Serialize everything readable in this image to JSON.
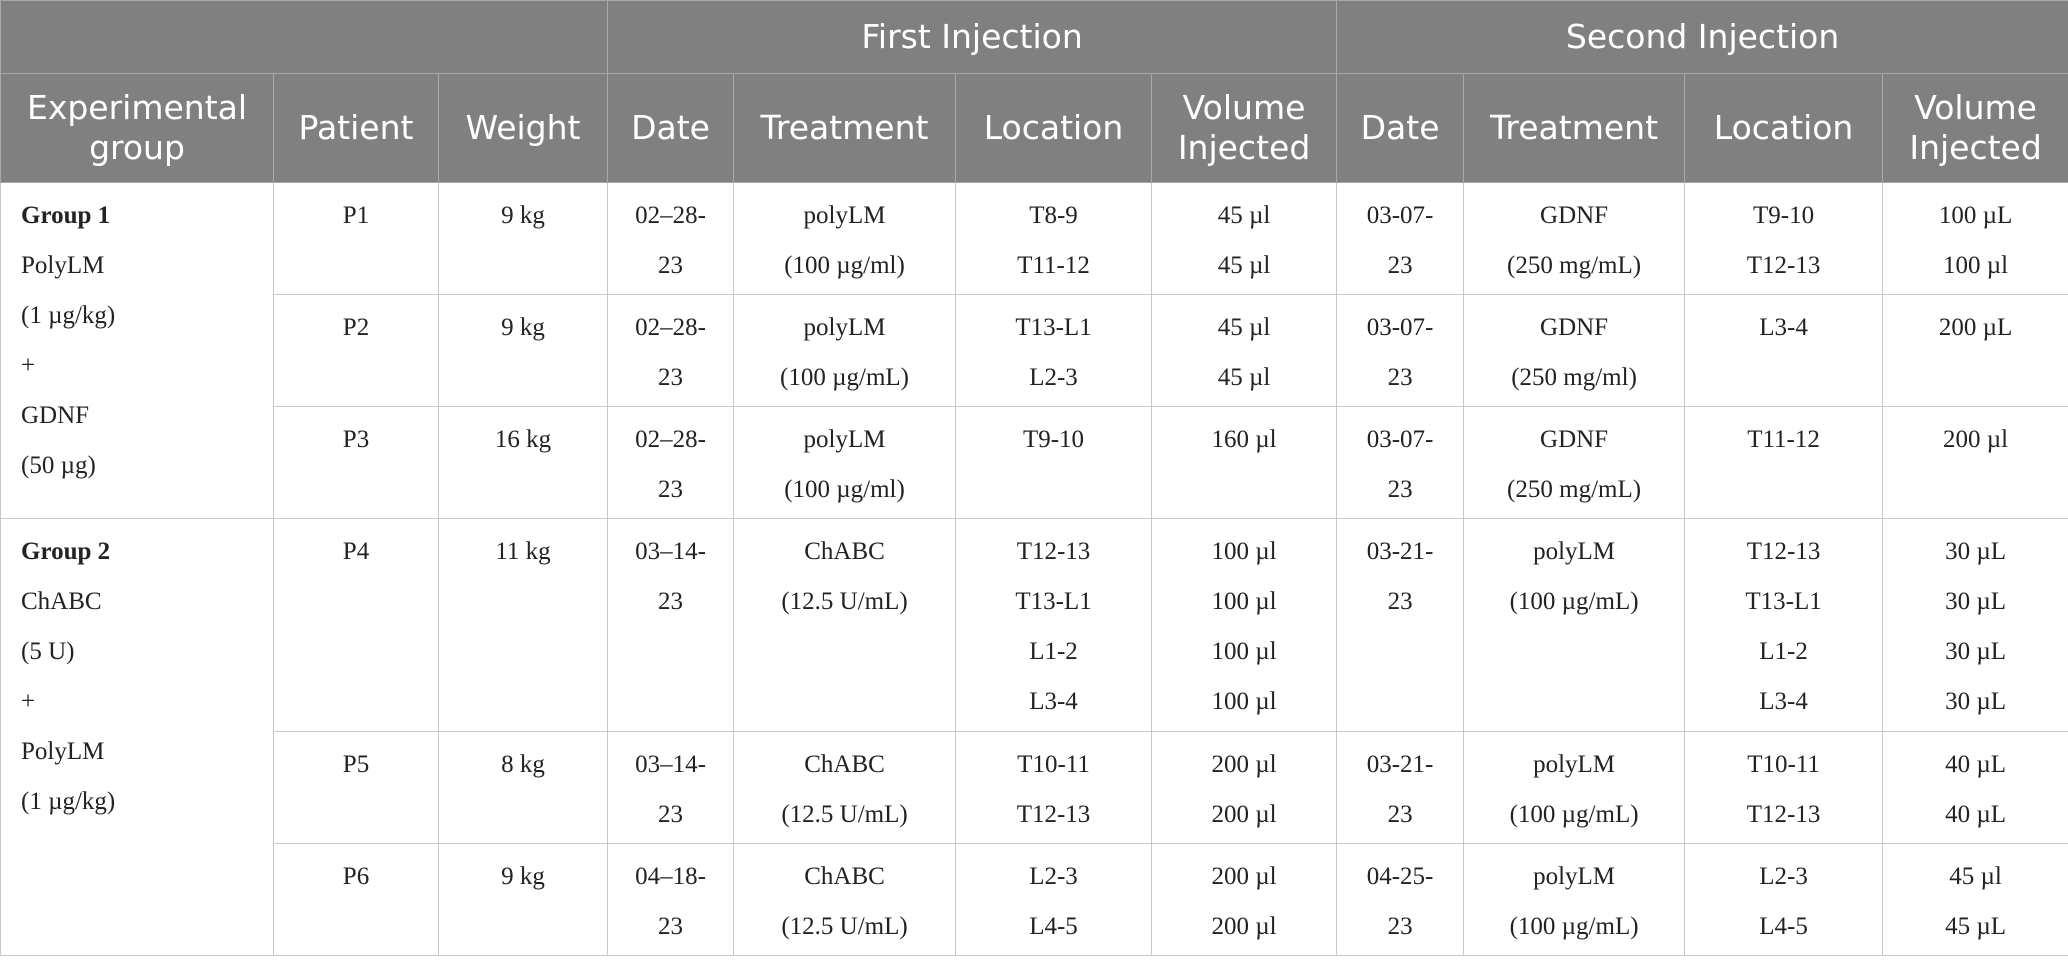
{
  "table": {
    "span_headers": [
      "First Injection",
      "Second Injection"
    ],
    "columns": [
      "Experimental group",
      "Patient",
      "Weight",
      "Date",
      "Treatment",
      "Location",
      "Volume Injected",
      "Date",
      "Treatment",
      "Location",
      "Volume Injected"
    ],
    "groups": [
      {
        "label": "Group 1",
        "description": [
          "PolyLM",
          "(1 µg/kg)",
          "+",
          "GDNF",
          "(50 µg)"
        ],
        "rows": [
          {
            "patient": "P1",
            "weight": "9 kg",
            "first": {
              "date": [
                "02–28-",
                "23"
              ],
              "treatment": [
                "polyLM",
                "(100 µg/ml)"
              ],
              "location": [
                "T8-9",
                "T11-12"
              ],
              "volume": [
                "45 µl",
                "45 µl"
              ]
            },
            "second": {
              "date": [
                "03-07-",
                "23"
              ],
              "treatment": [
                "GDNF",
                "(250 mg/mL)"
              ],
              "location": [
                "T9-10",
                "T12-13"
              ],
              "volume": [
                "100 µL",
                "100 µl"
              ]
            }
          },
          {
            "patient": "P2",
            "weight": "9 kg",
            "first": {
              "date": [
                "02–28-",
                "23"
              ],
              "treatment": [
                "polyLM",
                "(100 µg/mL)"
              ],
              "location": [
                "T13-L1",
                "L2-3"
              ],
              "volume": [
                "45 µl",
                "45 µl"
              ]
            },
            "second": {
              "date": [
                "03-07-",
                "23"
              ],
              "treatment": [
                "GDNF",
                "(250 mg/ml)"
              ],
              "location": [
                "L3-4"
              ],
              "volume": [
                "200 µL"
              ]
            }
          },
          {
            "patient": "P3",
            "weight": "16 kg",
            "first": {
              "date": [
                "02–28-",
                "23"
              ],
              "treatment": [
                "polyLM",
                "(100 µg/ml)"
              ],
              "location": [
                "T9-10"
              ],
              "volume": [
                "160 µl"
              ]
            },
            "second": {
              "date": [
                "03-07-",
                "23"
              ],
              "treatment": [
                "GDNF",
                "(250 mg/mL)"
              ],
              "location": [
                "T11-12"
              ],
              "volume": [
                "200 µl"
              ]
            }
          }
        ]
      },
      {
        "label": "Group 2",
        "description": [
          "ChABC",
          "(5 U)",
          "+",
          "PolyLM",
          "(1 µg/kg)"
        ],
        "rows": [
          {
            "patient": "P4",
            "weight": "11 kg",
            "first": {
              "date": [
                "03–14-",
                "23"
              ],
              "treatment": [
                "ChABC",
                "(12.5 U/mL)"
              ],
              "location": [
                "T12-13",
                "T13-L1",
                "L1-2",
                "L3-4"
              ],
              "volume": [
                "100 µl",
                "100 µl",
                "100 µl",
                "100 µl"
              ]
            },
            "second": {
              "date": [
                "03-21-",
                "23"
              ],
              "treatment": [
                "polyLM",
                "(100 µg/mL)"
              ],
              "location": [
                "T12-13",
                "T13-L1",
                "L1-2",
                "L3-4"
              ],
              "volume": [
                "30 µL",
                "30 µL",
                "30 µL",
                "30 µL"
              ]
            }
          },
          {
            "patient": "P5",
            "weight": "8 kg",
            "first": {
              "date": [
                "03–14-",
                "23"
              ],
              "treatment": [
                "ChABC",
                "(12.5 U/mL)"
              ],
              "location": [
                "T10-11",
                "T12-13"
              ],
              "volume": [
                "200 µl",
                "200 µl"
              ]
            },
            "second": {
              "date": [
                "03-21-",
                "23"
              ],
              "treatment": [
                "polyLM",
                "(100 µg/mL)"
              ],
              "location": [
                "T10-11",
                "T12-13"
              ],
              "volume": [
                "40 µL",
                "40 µL"
              ]
            }
          },
          {
            "patient": "P6",
            "weight": "9 kg",
            "first": {
              "date": [
                "04–18-",
                "23"
              ],
              "treatment": [
                "ChABC",
                "(12.5 U/mL)"
              ],
              "location": [
                "L2-3",
                "L4-5"
              ],
              "volume": [
                "200 µl",
                "200 µl"
              ]
            },
            "second": {
              "date": [
                "04-25-",
                "23"
              ],
              "treatment": [
                "polyLM",
                "(100 µg/mL)"
              ],
              "location": [
                "L2-3",
                "L4-5"
              ],
              "volume": [
                "45 µl",
                "45 µL"
              ]
            }
          }
        ]
      }
    ]
  }
}
